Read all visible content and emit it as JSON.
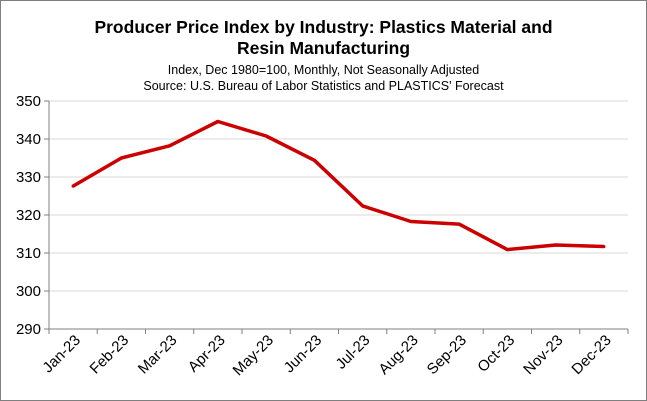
{
  "chart_data": {
    "type": "line",
    "title_lines": [
      "Producer Price Index by Industry: Plastics Material and",
      "Resin Manufacturing"
    ],
    "subtitle_lines": [
      "Index, Dec 1980=100, Monthly,  Not Seasonally Adjusted",
      "Source: U.S. Bureau of Labor Statistics and PLASTICS' Forecast"
    ],
    "xlabel": "",
    "ylabel": "",
    "categories": [
      "Jan-23",
      "Feb-23",
      "Mar-23",
      "Apr-23",
      "May-23",
      "Jun-23",
      "Jul-23",
      "Aug-23",
      "Sep-23",
      "Oct-23",
      "Nov-23",
      "Dec-23"
    ],
    "series": [
      {
        "values": [
          327.6,
          335.0,
          338.2,
          344.6,
          340.8,
          334.4,
          322.4,
          318.3,
          317.6,
          310.9,
          312.1,
          311.7
        ],
        "color": "#cc0000"
      }
    ],
    "ylim": [
      290,
      350
    ],
    "yticks": [
      290,
      300,
      310,
      320,
      330,
      340,
      350
    ],
    "ytick_labels": [
      "290",
      "300",
      "310",
      "320",
      "330",
      "340",
      "350"
    ],
    "grid": true,
    "legend": "none",
    "colors": {
      "line": "#cc0000",
      "grid": "#d9d9d9",
      "axis": "#7f7f7f"
    }
  }
}
